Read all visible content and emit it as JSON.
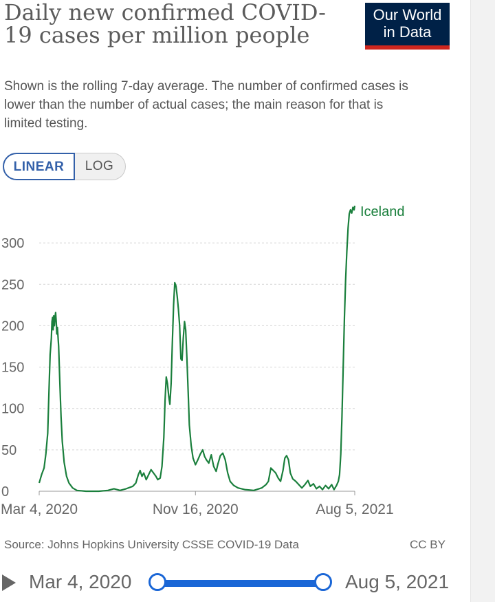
{
  "header": {
    "title": "Daily new confirmed COVID-19 cases per million people",
    "subtitle": "Shown is the rolling 7-day average. The number of confirmed cases is lower than the number of actual cases; the main reason for that is limited testing.",
    "logo_line1": "Our World",
    "logo_line2": "in Data"
  },
  "controls": {
    "linear_label": "LINEAR",
    "log_label": "LOG",
    "selected": "LINEAR"
  },
  "footer": {
    "source": "Source: Johns Hopkins University CSSE COVID-19 Data",
    "license": "CC BY"
  },
  "timeline": {
    "start_label": "Mar 4, 2020",
    "end_label": "Aug 5, 2021"
  },
  "colors": {
    "series": "#1a7f3c",
    "logo_bg": "#002147",
    "logo_accent": "#ce261e",
    "slider": "#1a66d6",
    "toggle_active": "#3360a9"
  },
  "chart_data": {
    "type": "line",
    "title": "Daily new confirmed COVID-19 cases per million people",
    "xlabel": "",
    "ylabel": "",
    "ylim": [
      0,
      345
    ],
    "yticks": [
      0,
      50,
      100,
      150,
      200,
      250,
      300
    ],
    "xlim": [
      "2020-03-04",
      "2021-08-05"
    ],
    "xticks": [
      "2020-03-04",
      "2020-11-16",
      "2021-08-05"
    ],
    "xtick_labels": [
      "Mar 4, 2020",
      "Nov 16, 2020",
      "Aug 5, 2021"
    ],
    "grid": "horizontal dashed",
    "series": [
      {
        "name": "Iceland",
        "points": [
          [
            "2020-03-04",
            10
          ],
          [
            "2020-03-08",
            20
          ],
          [
            "2020-03-12",
            28
          ],
          [
            "2020-03-15",
            45
          ],
          [
            "2020-03-18",
            70
          ],
          [
            "2020-03-20",
            120
          ],
          [
            "2020-03-22",
            165
          ],
          [
            "2020-03-24",
            185
          ],
          [
            "2020-03-25",
            205
          ],
          [
            "2020-03-26",
            210
          ],
          [
            "2020-03-27",
            195
          ],
          [
            "2020-03-28",
            212
          ],
          [
            "2020-03-29",
            200
          ],
          [
            "2020-03-30",
            210
          ],
          [
            "2020-03-31",
            216
          ],
          [
            "2020-04-01",
            205
          ],
          [
            "2020-04-02",
            190
          ],
          [
            "2020-04-03",
            198
          ],
          [
            "2020-04-05",
            175
          ],
          [
            "2020-04-07",
            130
          ],
          [
            "2020-04-09",
            90
          ],
          [
            "2020-04-11",
            60
          ],
          [
            "2020-04-14",
            35
          ],
          [
            "2020-04-18",
            18
          ],
          [
            "2020-04-22",
            10
          ],
          [
            "2020-04-28",
            4
          ],
          [
            "2020-05-05",
            1
          ],
          [
            "2020-05-20",
            0
          ],
          [
            "2020-06-10",
            0
          ],
          [
            "2020-06-25",
            1
          ],
          [
            "2020-07-05",
            3
          ],
          [
            "2020-07-15",
            1
          ],
          [
            "2020-07-25",
            3
          ],
          [
            "2020-08-05",
            6
          ],
          [
            "2020-08-10",
            10
          ],
          [
            "2020-08-14",
            20
          ],
          [
            "2020-08-17",
            25
          ],
          [
            "2020-08-20",
            18
          ],
          [
            "2020-08-23",
            22
          ],
          [
            "2020-08-27",
            14
          ],
          [
            "2020-08-31",
            20
          ],
          [
            "2020-09-04",
            26
          ],
          [
            "2020-09-08",
            22
          ],
          [
            "2020-09-12",
            18
          ],
          [
            "2020-09-15",
            14
          ],
          [
            "2020-09-19",
            16
          ],
          [
            "2020-09-22",
            30
          ],
          [
            "2020-09-25",
            65
          ],
          [
            "2020-09-27",
            110
          ],
          [
            "2020-09-29",
            138
          ],
          [
            "2020-10-01",
            130
          ],
          [
            "2020-10-03",
            115
          ],
          [
            "2020-10-05",
            105
          ],
          [
            "2020-10-07",
            130
          ],
          [
            "2020-10-09",
            180
          ],
          [
            "2020-10-11",
            225
          ],
          [
            "2020-10-13",
            252
          ],
          [
            "2020-10-15",
            248
          ],
          [
            "2020-10-17",
            235
          ],
          [
            "2020-10-19",
            220
          ],
          [
            "2020-10-21",
            200
          ],
          [
            "2020-10-23",
            160
          ],
          [
            "2020-10-25",
            158
          ],
          [
            "2020-10-27",
            185
          ],
          [
            "2020-10-29",
            205
          ],
          [
            "2020-10-31",
            195
          ],
          [
            "2020-11-02",
            160
          ],
          [
            "2020-11-04",
            120
          ],
          [
            "2020-11-06",
            80
          ],
          [
            "2020-11-09",
            55
          ],
          [
            "2020-11-12",
            40
          ],
          [
            "2020-11-16",
            32
          ],
          [
            "2020-11-20",
            38
          ],
          [
            "2020-11-24",
            45
          ],
          [
            "2020-11-28",
            50
          ],
          [
            "2020-12-01",
            42
          ],
          [
            "2020-12-04",
            38
          ],
          [
            "2020-12-08",
            34
          ],
          [
            "2020-12-12",
            44
          ],
          [
            "2020-12-16",
            30
          ],
          [
            "2020-12-20",
            24
          ],
          [
            "2020-12-23",
            33
          ],
          [
            "2020-12-27",
            43
          ],
          [
            "2020-12-31",
            46
          ],
          [
            "2021-01-04",
            38
          ],
          [
            "2021-01-08",
            22
          ],
          [
            "2021-01-12",
            12
          ],
          [
            "2021-01-18",
            7
          ],
          [
            "2021-01-25",
            4
          ],
          [
            "2021-02-05",
            2
          ],
          [
            "2021-02-20",
            1
          ],
          [
            "2021-03-05",
            4
          ],
          [
            "2021-03-12",
            8
          ],
          [
            "2021-03-16",
            12
          ],
          [
            "2021-03-20",
            28
          ],
          [
            "2021-03-24",
            25
          ],
          [
            "2021-03-28",
            22
          ],
          [
            "2021-04-01",
            16
          ],
          [
            "2021-04-05",
            12
          ],
          [
            "2021-04-09",
            25
          ],
          [
            "2021-04-12",
            40
          ],
          [
            "2021-04-15",
            43
          ],
          [
            "2021-04-18",
            38
          ],
          [
            "2021-04-21",
            22
          ],
          [
            "2021-04-25",
            15
          ],
          [
            "2021-04-30",
            12
          ],
          [
            "2021-05-05",
            8
          ],
          [
            "2021-05-10",
            4
          ],
          [
            "2021-05-15",
            8
          ],
          [
            "2021-05-20",
            13
          ],
          [
            "2021-05-24",
            6
          ],
          [
            "2021-05-29",
            9
          ],
          [
            "2021-06-03",
            3
          ],
          [
            "2021-06-08",
            6
          ],
          [
            "2021-06-13",
            2
          ],
          [
            "2021-06-18",
            7
          ],
          [
            "2021-06-23",
            3
          ],
          [
            "2021-06-28",
            8
          ],
          [
            "2021-07-02",
            2
          ],
          [
            "2021-07-06",
            7
          ],
          [
            "2021-07-09",
            12
          ],
          [
            "2021-07-11",
            20
          ],
          [
            "2021-07-13",
            45
          ],
          [
            "2021-07-15",
            90
          ],
          [
            "2021-07-17",
            150
          ],
          [
            "2021-07-19",
            210
          ],
          [
            "2021-07-21",
            255
          ],
          [
            "2021-07-23",
            290
          ],
          [
            "2021-07-25",
            318
          ],
          [
            "2021-07-27",
            335
          ],
          [
            "2021-07-29",
            340
          ],
          [
            "2021-07-31",
            336
          ],
          [
            "2021-08-02",
            343
          ],
          [
            "2021-08-04",
            340
          ],
          [
            "2021-08-05",
            345
          ]
        ]
      }
    ]
  }
}
